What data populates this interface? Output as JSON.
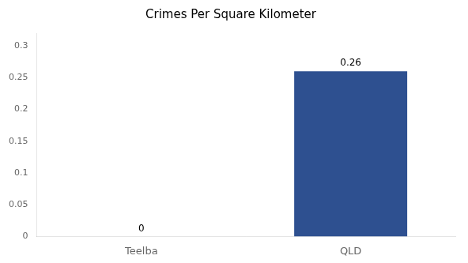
{
  "chart_data": {
    "type": "bar",
    "title": "Crimes Per Square Kilometer",
    "categories": [
      "Teelba",
      "QLD"
    ],
    "values": [
      0,
      0.26
    ],
    "colors": [
      "#34568b",
      "#2e5090"
    ],
    "ylim": [
      0,
      0.32
    ],
    "yticks": [
      0,
      0.05,
      0.1,
      0.15,
      0.2,
      0.25,
      0.3
    ],
    "grid": false,
    "data_labels": true
  }
}
